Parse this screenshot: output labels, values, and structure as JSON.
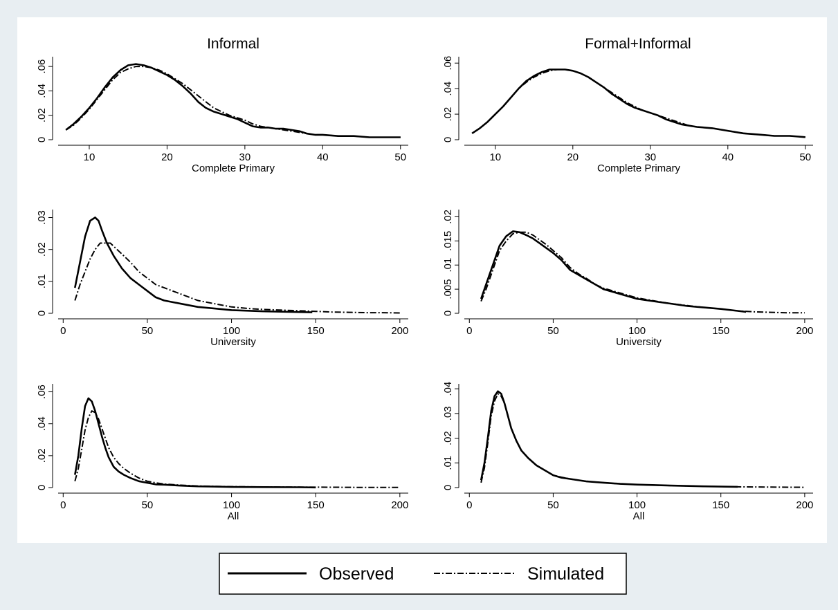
{
  "colors": {
    "outer_background": "#e8eef2",
    "plot_background": "#ffffff",
    "line": "#000000"
  },
  "legend": {
    "items": [
      {
        "label": "Observed",
        "style": "solid"
      },
      {
        "label": "Simulated",
        "style": "dash-dot"
      }
    ],
    "placement": "bottom-center"
  },
  "column_titles": [
    "Informal",
    "Formal+Informal"
  ],
  "chart_data": [
    {
      "type": "line",
      "column_title": "Informal",
      "xlabel": "Complete Primary",
      "xlim": [
        6,
        51
      ],
      "ylim": [
        0,
        0.068
      ],
      "xticks": [
        10,
        20,
        30,
        40,
        50
      ],
      "xtick_labels": [
        "10",
        "20",
        "30",
        "40",
        "50"
      ],
      "yticks": [
        0,
        0.02,
        0.04,
        0.06
      ],
      "ytick_labels": [
        "0",
        ".02",
        ".04",
        ".06"
      ],
      "series": [
        {
          "name": "Observed",
          "style": "solid",
          "x": [
            7,
            8,
            9,
            10,
            11,
            12,
            13,
            14,
            15,
            16,
            17,
            18,
            19,
            20,
            21,
            22,
            23,
            24,
            25,
            26,
            27,
            28,
            29,
            30,
            31,
            32,
            33,
            34,
            35,
            36,
            37,
            38,
            39,
            40,
            42,
            44,
            46,
            48,
            50
          ],
          "y": [
            0.008,
            0.013,
            0.019,
            0.026,
            0.034,
            0.043,
            0.051,
            0.057,
            0.061,
            0.062,
            0.061,
            0.059,
            0.056,
            0.053,
            0.049,
            0.044,
            0.038,
            0.031,
            0.026,
            0.023,
            0.021,
            0.019,
            0.017,
            0.014,
            0.011,
            0.01,
            0.01,
            0.009,
            0.009,
            0.008,
            0.007,
            0.005,
            0.004,
            0.004,
            0.003,
            0.003,
            0.002,
            0.002,
            0.002
          ]
        },
        {
          "name": "Simulated",
          "style": "dash-dot",
          "x": [
            7,
            8,
            9,
            10,
            11,
            12,
            13,
            14,
            15,
            16,
            17,
            18,
            19,
            20,
            21,
            22,
            23,
            24,
            25,
            26,
            27,
            28,
            29,
            30,
            31,
            32,
            33,
            34,
            35,
            36,
            37,
            38,
            39,
            40,
            42,
            44,
            46,
            48,
            50
          ],
          "y": [
            0.008,
            0.012,
            0.018,
            0.025,
            0.033,
            0.041,
            0.049,
            0.055,
            0.058,
            0.06,
            0.06,
            0.059,
            0.057,
            0.054,
            0.05,
            0.046,
            0.041,
            0.036,
            0.031,
            0.026,
            0.023,
            0.02,
            0.018,
            0.016,
            0.013,
            0.011,
            0.01,
            0.009,
            0.008,
            0.007,
            0.006,
            0.005,
            0.004,
            0.004,
            0.003,
            0.003,
            0.002,
            0.002,
            0.002
          ]
        }
      ]
    },
    {
      "type": "line",
      "column_title": "Formal+Informal",
      "xlabel": "Complete Primary",
      "xlim": [
        6,
        51
      ],
      "ylim": [
        0,
        0.065
      ],
      "xticks": [
        10,
        20,
        30,
        40,
        50
      ],
      "xtick_labels": [
        "10",
        "20",
        "30",
        "40",
        "50"
      ],
      "yticks": [
        0,
        0.02,
        0.04,
        0.06
      ],
      "ytick_labels": [
        "0",
        ".02",
        ".04",
        ".06"
      ],
      "series": [
        {
          "name": "Observed",
          "style": "solid",
          "x": [
            7,
            8,
            9,
            10,
            11,
            12,
            13,
            14,
            15,
            16,
            17,
            18,
            19,
            20,
            21,
            22,
            23,
            24,
            25,
            26,
            27,
            28,
            29,
            30,
            31,
            32,
            33,
            34,
            35,
            36,
            38,
            40,
            42,
            44,
            46,
            48,
            50
          ],
          "y": [
            0.005,
            0.009,
            0.014,
            0.02,
            0.026,
            0.033,
            0.04,
            0.046,
            0.05,
            0.053,
            0.055,
            0.055,
            0.055,
            0.054,
            0.052,
            0.049,
            0.045,
            0.041,
            0.036,
            0.032,
            0.028,
            0.025,
            0.023,
            0.021,
            0.019,
            0.016,
            0.014,
            0.012,
            0.011,
            0.01,
            0.009,
            0.007,
            0.005,
            0.004,
            0.003,
            0.003,
            0.002
          ]
        },
        {
          "name": "Simulated",
          "style": "dash-dot",
          "x": [
            7,
            8,
            9,
            10,
            11,
            12,
            13,
            14,
            15,
            16,
            17,
            18,
            19,
            20,
            21,
            22,
            23,
            24,
            25,
            26,
            27,
            28,
            29,
            30,
            31,
            32,
            33,
            34,
            35,
            36,
            38,
            40,
            42,
            44,
            46,
            48,
            50
          ],
          "y": [
            0.005,
            0.009,
            0.014,
            0.02,
            0.026,
            0.033,
            0.04,
            0.045,
            0.049,
            0.052,
            0.054,
            0.055,
            0.055,
            0.054,
            0.052,
            0.049,
            0.045,
            0.041,
            0.037,
            0.033,
            0.029,
            0.026,
            0.023,
            0.021,
            0.019,
            0.017,
            0.015,
            0.013,
            0.011,
            0.01,
            0.009,
            0.007,
            0.005,
            0.004,
            0.003,
            0.003,
            0.002
          ]
        }
      ]
    },
    {
      "type": "line",
      "column_title": "Informal",
      "xlabel": "University",
      "xlim": [
        -3,
        205
      ],
      "ylim": [
        0,
        0.0325
      ],
      "xticks": [
        0,
        50,
        100,
        150,
        200
      ],
      "xtick_labels": [
        "0",
        "50",
        "100",
        "150",
        "200"
      ],
      "yticks": [
        0,
        0.01,
        0.02,
        0.03
      ],
      "ytick_labels": [
        "0",
        ".01",
        ".02",
        ".03"
      ],
      "series": [
        {
          "name": "Observed",
          "style": "solid",
          "x": [
            7,
            10,
            13,
            16,
            19,
            21,
            23,
            26,
            30,
            35,
            40,
            45,
            50,
            55,
            60,
            70,
            80,
            90,
            100,
            110,
            120,
            130,
            140,
            148
          ],
          "y": [
            0.008,
            0.016,
            0.024,
            0.029,
            0.03,
            0.029,
            0.026,
            0.022,
            0.018,
            0.014,
            0.011,
            0.009,
            0.007,
            0.005,
            0.004,
            0.003,
            0.002,
            0.0015,
            0.001,
            0.0008,
            0.0006,
            0.0005,
            0.0004,
            0.0003
          ]
        },
        {
          "name": "Simulated",
          "style": "dash-dot",
          "x": [
            7,
            10,
            13,
            16,
            19,
            22,
            25,
            28,
            32,
            36,
            40,
            45,
            50,
            55,
            60,
            70,
            80,
            90,
            100,
            110,
            120,
            130,
            140,
            150,
            160,
            170,
            180,
            190,
            200
          ],
          "y": [
            0.004,
            0.009,
            0.013,
            0.017,
            0.02,
            0.022,
            0.022,
            0.022,
            0.02,
            0.018,
            0.016,
            0.013,
            0.011,
            0.009,
            0.008,
            0.006,
            0.004,
            0.003,
            0.002,
            0.0015,
            0.0012,
            0.001,
            0.0008,
            0.0006,
            0.0004,
            0.0003,
            0.0002,
            0.0002,
            0.0001
          ]
        }
      ]
    },
    {
      "type": "line",
      "column_title": "Formal+Informal",
      "xlabel": "University",
      "xlim": [
        -3,
        205
      ],
      "ylim": [
        0,
        0.0215
      ],
      "xticks": [
        0,
        50,
        100,
        150,
        200
      ],
      "xtick_labels": [
        "0",
        "50",
        "100",
        "150",
        "200"
      ],
      "yticks": [
        0,
        0.005,
        0.01,
        0.015,
        0.02
      ],
      "ytick_labels": [
        "0",
        ".005",
        ".01",
        ".015",
        ".02"
      ],
      "series": [
        {
          "name": "Observed",
          "style": "solid",
          "x": [
            7,
            10,
            14,
            18,
            22,
            26,
            30,
            34,
            38,
            42,
            46,
            50,
            55,
            60,
            65,
            70,
            75,
            80,
            90,
            100,
            110,
            120,
            130,
            140,
            150,
            160,
            165
          ],
          "y": [
            0.003,
            0.006,
            0.01,
            0.014,
            0.016,
            0.017,
            0.0168,
            0.0162,
            0.0155,
            0.0145,
            0.0135,
            0.0125,
            0.011,
            0.009,
            0.008,
            0.007,
            0.006,
            0.005,
            0.004,
            0.003,
            0.0025,
            0.002,
            0.0015,
            0.0012,
            0.0009,
            0.0005,
            0.0003
          ]
        },
        {
          "name": "Simulated",
          "style": "dash-dot",
          "x": [
            7,
            10,
            14,
            18,
            22,
            26,
            30,
            34,
            38,
            42,
            46,
            50,
            55,
            60,
            65,
            70,
            75,
            80,
            90,
            100,
            110,
            120,
            130,
            140,
            150,
            160,
            170,
            180,
            190,
            200
          ],
          "y": [
            0.0025,
            0.005,
            0.009,
            0.013,
            0.015,
            0.0165,
            0.0168,
            0.0168,
            0.0162,
            0.0152,
            0.0142,
            0.013,
            0.0115,
            0.0095,
            0.0082,
            0.0072,
            0.006,
            0.0052,
            0.0042,
            0.0032,
            0.0026,
            0.002,
            0.0016,
            0.0012,
            0.0009,
            0.0005,
            0.0003,
            0.0002,
            0.0001,
            0.0001
          ]
        }
      ]
    },
    {
      "type": "line",
      "column_title": "Informal",
      "xlabel": "All",
      "xlim": [
        -3,
        205
      ],
      "ylim": [
        0,
        0.065
      ],
      "xticks": [
        0,
        50,
        100,
        150,
        200
      ],
      "xtick_labels": [
        "0",
        "50",
        "100",
        "150",
        "200"
      ],
      "yticks": [
        0,
        0.02,
        0.04,
        0.06
      ],
      "ytick_labels": [
        "0",
        ".02",
        ".04",
        ".06"
      ],
      "series": [
        {
          "name": "Observed",
          "style": "solid",
          "x": [
            7,
            9,
            11,
            13,
            15,
            17,
            19,
            21,
            23,
            25,
            27,
            30,
            33,
            36,
            40,
            45,
            50,
            55,
            60,
            70,
            80,
            90,
            100,
            120,
            140,
            150
          ],
          "y": [
            0.008,
            0.02,
            0.037,
            0.051,
            0.056,
            0.054,
            0.048,
            0.04,
            0.032,
            0.025,
            0.019,
            0.013,
            0.01,
            0.008,
            0.006,
            0.004,
            0.003,
            0.002,
            0.0018,
            0.0012,
            0.0008,
            0.0006,
            0.0004,
            0.0003,
            0.0002,
            0.0001
          ]
        },
        {
          "name": "Simulated",
          "style": "dash-dot",
          "x": [
            7,
            9,
            11,
            13,
            15,
            17,
            19,
            21,
            23,
            25,
            27,
            30,
            33,
            36,
            40,
            45,
            50,
            55,
            60,
            70,
            80,
            90,
            100,
            120,
            140,
            160,
            180,
            200
          ],
          "y": [
            0.004,
            0.012,
            0.024,
            0.036,
            0.044,
            0.048,
            0.047,
            0.043,
            0.037,
            0.031,
            0.025,
            0.019,
            0.015,
            0.012,
            0.009,
            0.006,
            0.004,
            0.003,
            0.0022,
            0.0015,
            0.001,
            0.0008,
            0.0006,
            0.0004,
            0.0003,
            0.0002,
            0.0001,
            0.0001
          ]
        }
      ]
    },
    {
      "type": "line",
      "column_title": "Formal+Informal",
      "xlabel": "All",
      "xlim": [
        -3,
        205
      ],
      "ylim": [
        0,
        0.042
      ],
      "xticks": [
        0,
        50,
        100,
        150,
        200
      ],
      "xtick_labels": [
        "0",
        "50",
        "100",
        "150",
        "200"
      ],
      "yticks": [
        0,
        0.01,
        0.02,
        0.03,
        0.04
      ],
      "ytick_labels": [
        "0",
        ".01",
        ".02",
        ".03",
        ".04"
      ],
      "series": [
        {
          "name": "Observed",
          "style": "solid",
          "x": [
            7,
            9,
            11,
            13,
            15,
            17,
            19,
            21,
            23,
            25,
            28,
            31,
            35,
            40,
            45,
            50,
            55,
            60,
            70,
            80,
            90,
            100,
            120,
            140,
            160
          ],
          "y": [
            0.003,
            0.01,
            0.02,
            0.031,
            0.037,
            0.039,
            0.038,
            0.034,
            0.029,
            0.024,
            0.019,
            0.015,
            0.012,
            0.009,
            0.007,
            0.005,
            0.004,
            0.0035,
            0.0025,
            0.002,
            0.0015,
            0.0012,
            0.0008,
            0.0005,
            0.0003
          ]
        },
        {
          "name": "Simulated",
          "style": "dash-dot",
          "x": [
            7,
            9,
            11,
            13,
            15,
            17,
            19,
            21,
            23,
            25,
            28,
            31,
            35,
            40,
            45,
            50,
            55,
            60,
            70,
            80,
            90,
            100,
            120,
            140,
            160,
            180,
            200
          ],
          "y": [
            0.002,
            0.008,
            0.018,
            0.029,
            0.035,
            0.038,
            0.037,
            0.034,
            0.029,
            0.024,
            0.019,
            0.015,
            0.012,
            0.009,
            0.007,
            0.005,
            0.0042,
            0.0035,
            0.0025,
            0.002,
            0.0015,
            0.0012,
            0.0008,
            0.0005,
            0.0003,
            0.0002,
            0.0001
          ]
        }
      ]
    }
  ]
}
